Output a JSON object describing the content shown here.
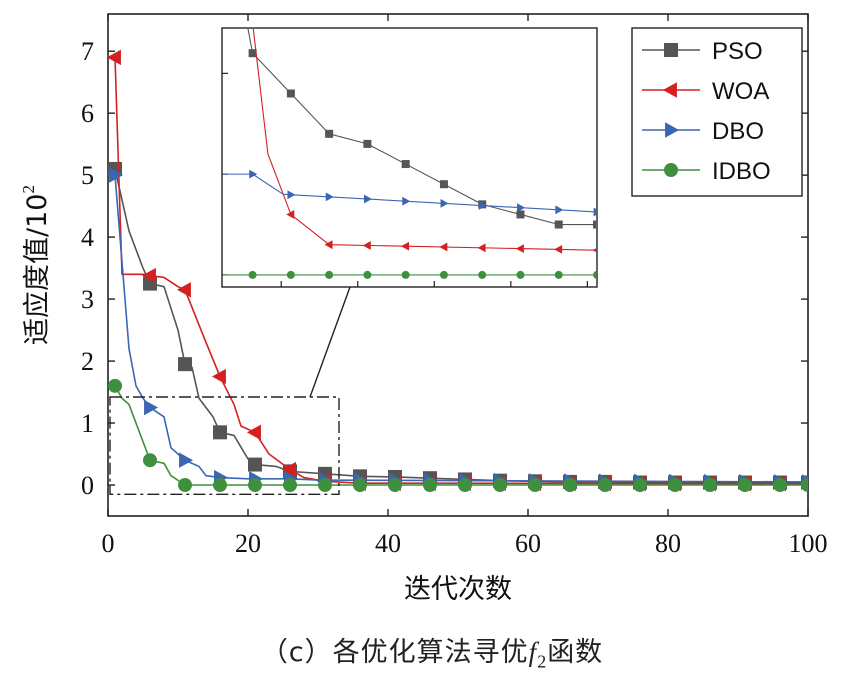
{
  "chart_data": {
    "type": "line",
    "xlabel": "迭代次数",
    "ylabel": "适应度值/10",
    "ylabel_sup": "2",
    "xlim": [
      0,
      100
    ],
    "ylim": [
      -0.5,
      7.6
    ],
    "xticks": [
      0,
      20,
      40,
      60,
      80,
      100
    ],
    "yticks": [
      0,
      1,
      2,
      3,
      4,
      5,
      6,
      7
    ],
    "legend_position": "top-right",
    "series": [
      {
        "name": "PSO",
        "color": "#555555",
        "marker": "square",
        "points": [
          [
            0,
            5.1
          ],
          [
            1,
            5.1
          ],
          [
            2,
            4.6
          ],
          [
            3,
            4.1
          ],
          [
            5,
            3.5
          ],
          [
            6,
            3.25
          ],
          [
            8,
            3.2
          ],
          [
            10,
            2.5
          ],
          [
            11,
            1.95
          ],
          [
            12,
            1.9
          ],
          [
            13,
            1.4
          ],
          [
            15,
            1.1
          ],
          [
            16,
            0.85
          ],
          [
            18,
            0.8
          ],
          [
            20,
            0.42
          ],
          [
            21,
            0.33
          ],
          [
            24,
            0.3
          ],
          [
            26,
            0.22
          ],
          [
            31,
            0.18
          ],
          [
            36,
            0.14
          ],
          [
            41,
            0.13
          ],
          [
            46,
            0.11
          ],
          [
            51,
            0.09
          ],
          [
            56,
            0.07
          ],
          [
            61,
            0.06
          ],
          [
            66,
            0.05
          ],
          [
            71,
            0.05
          ],
          [
            76,
            0.04
          ],
          [
            81,
            0.04
          ],
          [
            86,
            0.04
          ],
          [
            91,
            0.04
          ],
          [
            96,
            0.04
          ],
          [
            100,
            0.04
          ]
        ],
        "marker_x": [
          1,
          6,
          11,
          16,
          21,
          26,
          31,
          36,
          41,
          46,
          51,
          56,
          61,
          66,
          71,
          76,
          81,
          86,
          91,
          96,
          100
        ]
      },
      {
        "name": "WOA",
        "color": "#d42020",
        "marker": "triangle-left",
        "points": [
          [
            0,
            6.9
          ],
          [
            1,
            6.9
          ],
          [
            2,
            3.4
          ],
          [
            5,
            3.4
          ],
          [
            6,
            3.38
          ],
          [
            8,
            3.35
          ],
          [
            10,
            3.2
          ],
          [
            11,
            3.15
          ],
          [
            14,
            2.3
          ],
          [
            16,
            1.75
          ],
          [
            18,
            1.3
          ],
          [
            19,
            0.95
          ],
          [
            21,
            0.85
          ],
          [
            23,
            0.5
          ],
          [
            26,
            0.25
          ],
          [
            28,
            0.12
          ],
          [
            31,
            0.06
          ],
          [
            36,
            0.03
          ],
          [
            100,
            0.02
          ]
        ],
        "marker_x": [
          1,
          6,
          11,
          16,
          21,
          26,
          31,
          36,
          41,
          46,
          51,
          56,
          61,
          66,
          71,
          76,
          81,
          86,
          91,
          96,
          100
        ]
      },
      {
        "name": "DBO",
        "color": "#3a66b4",
        "marker": "triangle-right",
        "points": [
          [
            0,
            5.0
          ],
          [
            1,
            5.0
          ],
          [
            2,
            3.6
          ],
          [
            3,
            2.2
          ],
          [
            4,
            1.6
          ],
          [
            5,
            1.4
          ],
          [
            6,
            1.25
          ],
          [
            8,
            1.1
          ],
          [
            9,
            0.6
          ],
          [
            11,
            0.4
          ],
          [
            13,
            0.3
          ],
          [
            14,
            0.15
          ],
          [
            16,
            0.12
          ],
          [
            20,
            0.1
          ],
          [
            26,
            0.1
          ],
          [
            30,
            0.08
          ],
          [
            100,
            0.05
          ]
        ],
        "marker_x": [
          1,
          6,
          11,
          16,
          21,
          26,
          31,
          36,
          41,
          46,
          51,
          56,
          61,
          66,
          71,
          76,
          81,
          86,
          91,
          96,
          100
        ]
      },
      {
        "name": "IDBO",
        "color": "#3e8f3e",
        "marker": "circle",
        "points": [
          [
            0,
            1.6
          ],
          [
            1,
            1.6
          ],
          [
            2,
            1.4
          ],
          [
            3,
            1.3
          ],
          [
            4,
            1.0
          ],
          [
            5,
            0.7
          ],
          [
            6,
            0.4
          ],
          [
            8,
            0.35
          ],
          [
            9,
            0.15
          ],
          [
            11,
            0.0
          ],
          [
            100,
            0.0
          ]
        ],
        "marker_x": [
          1,
          6,
          11,
          16,
          21,
          26,
          31,
          36,
          41,
          46,
          51,
          56,
          61,
          66,
          71,
          76,
          81,
          86,
          91,
          96,
          100
        ]
      }
    ],
    "zoom_region": {
      "x": [
        0,
        33
      ],
      "y": [
        -0.15,
        1.42
      ]
    }
  },
  "caption": {
    "prefix": "（c）各优化算法寻优",
    "func_symbol": "f",
    "func_sub": "2",
    "suffix": "函数"
  }
}
